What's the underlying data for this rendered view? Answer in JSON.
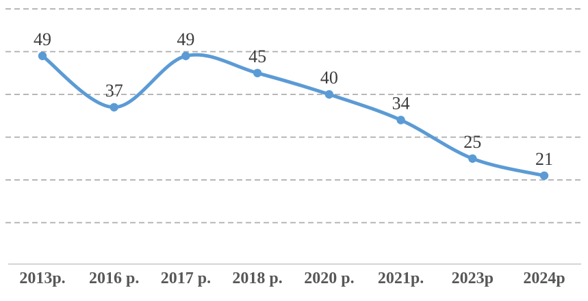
{
  "chart_data": {
    "type": "line",
    "title": "",
    "xlabel": "",
    "ylabel": "",
    "categories": [
      "2013p.",
      "2016 p.",
      "2017 p.",
      "2018 p.",
      "2020 p.",
      "2021p.",
      "2023p",
      "2024p"
    ],
    "values": [
      49,
      37,
      49,
      45,
      40,
      34,
      25,
      21
    ],
    "data_labels": [
      "49",
      "37",
      "49",
      "45",
      "40",
      "34",
      "25",
      "21"
    ],
    "ylim": [
      0,
      60
    ],
    "gridline_values": [
      10,
      20,
      30,
      40,
      50,
      60
    ],
    "grid": "horizontal-dashed",
    "legend": "none",
    "smooth": true,
    "markers": "circle",
    "colors": {
      "line": "#5B9BD5",
      "marker": "#5B9BD5",
      "gridline": "#ACACAC",
      "axis_baseline": "#D4D4D4",
      "data_label": "#3B3B3B",
      "axis_label": "#575757"
    }
  }
}
